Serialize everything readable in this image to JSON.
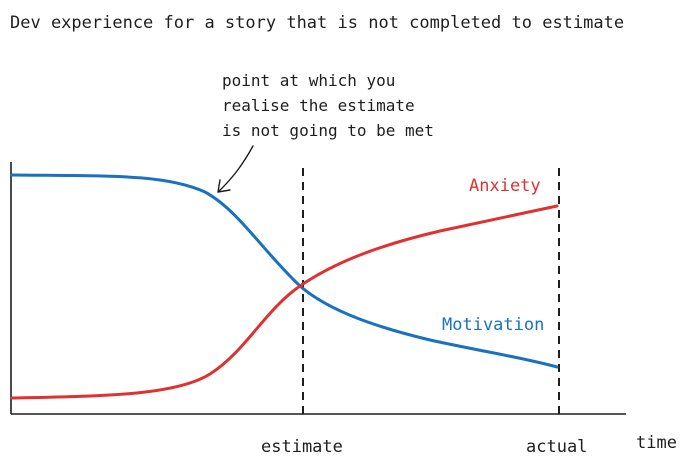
{
  "title": "Dev experience for a story that is not completed to estimate",
  "annotation": {
    "lines": [
      "point at which you",
      "realise the estimate",
      "is not going to be met"
    ]
  },
  "series": {
    "anxiety": {
      "name": "Anxiety",
      "color": "#e03131"
    },
    "motivation": {
      "name": "Motivation",
      "color": "#1971c2"
    }
  },
  "markers": {
    "estimate": "estimate",
    "actual": "actual"
  },
  "x_axis_label": "time",
  "colors": {
    "ink": "#1e1e1e"
  }
}
